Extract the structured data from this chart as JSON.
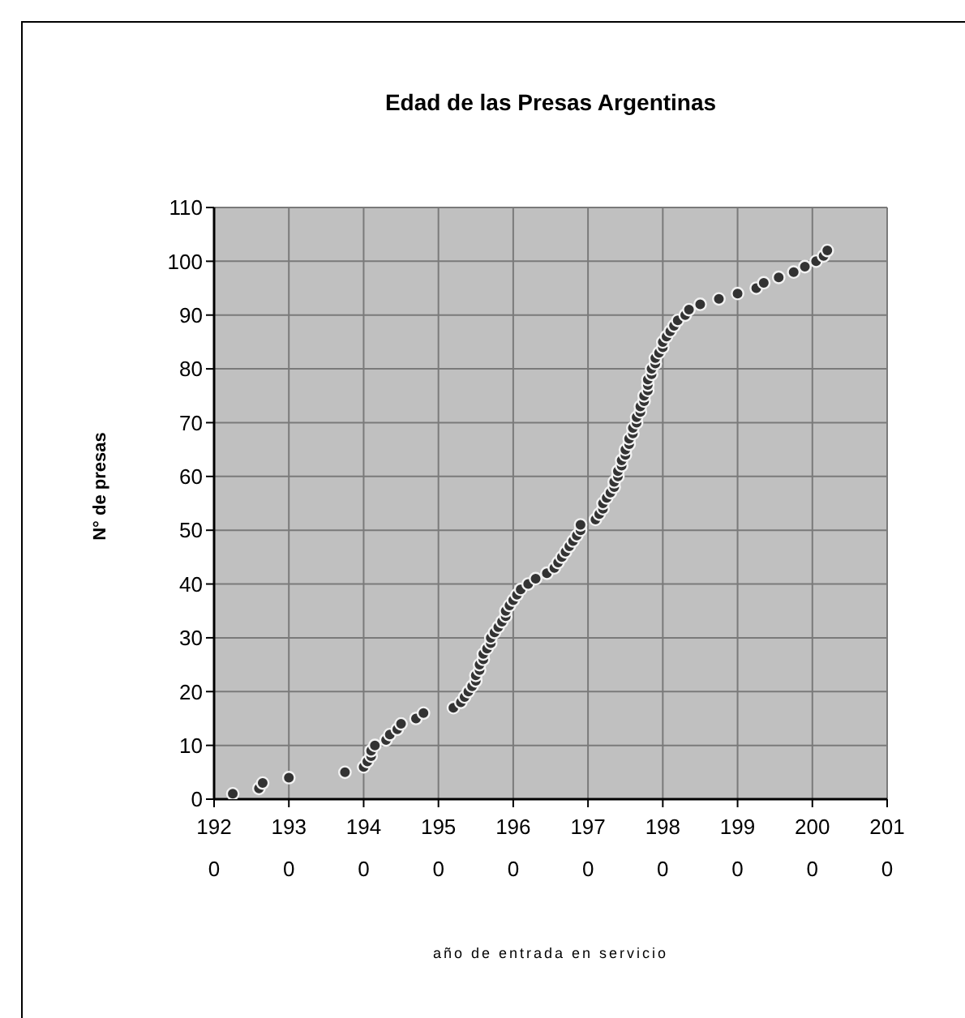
{
  "chart_data": {
    "type": "scatter",
    "title": "Edad de las Presas Argentinas",
    "xlabel": "año de entrada en servicio",
    "ylabel": "N° de presas",
    "x": [
      1922.5,
      1926,
      1926.5,
      1930,
      1937.5,
      1940,
      1940.5,
      1941,
      1941,
      1941.5,
      1943,
      1943.5,
      1944.5,
      1945,
      1947,
      1948,
      1952,
      1953,
      1953.5,
      1954,
      1954.5,
      1955,
      1955,
      1955.5,
      1955.5,
      1956,
      1956,
      1956.5,
      1957,
      1957,
      1957.5,
      1958,
      1958.5,
      1959,
      1959,
      1959.5,
      1960,
      1960.5,
      1961,
      1962,
      1963,
      1964.5,
      1965.5,
      1966,
      1966.5,
      1967,
      1967.5,
      1968,
      1968.5,
      1969,
      1969,
      1971,
      1971.5,
      1972,
      1972,
      1972.5,
      1973,
      1973.5,
      1973.5,
      1974,
      1974,
      1974.5,
      1974.5,
      1975,
      1975,
      1975.5,
      1975.5,
      1976,
      1976,
      1976.5,
      1976.5,
      1977,
      1977,
      1977.5,
      1977.5,
      1978,
      1978,
      1978,
      1978.5,
      1978.5,
      1979,
      1979,
      1979.5,
      1980,
      1980,
      1980.5,
      1981,
      1981.5,
      1982,
      1983,
      1983.5,
      1985,
      1987.5,
      1990,
      1992.5,
      1993.5,
      1995.5,
      1997.5,
      1999,
      2000.5,
      2001.5,
      2002
    ],
    "values": [
      1,
      2,
      3,
      4,
      5,
      6,
      7,
      8,
      9,
      10,
      11,
      12,
      13,
      14,
      15,
      16,
      17,
      18,
      19,
      20,
      21,
      22,
      23,
      24,
      25,
      26,
      27,
      28,
      29,
      30,
      31,
      32,
      33,
      34,
      35,
      36,
      37,
      38,
      39,
      40,
      41,
      42,
      43,
      44,
      45,
      46,
      47,
      48,
      49,
      50,
      51,
      52,
      53,
      54,
      55,
      56,
      57,
      58,
      59,
      60,
      61,
      62,
      63,
      64,
      65,
      66,
      67,
      68,
      69,
      70,
      71,
      72,
      73,
      74,
      75,
      76,
      77,
      78,
      79,
      80,
      81,
      82,
      83,
      84,
      85,
      86,
      87,
      88,
      89,
      90,
      91,
      92,
      93,
      94,
      95,
      96,
      97,
      98,
      99,
      100,
      101,
      102
    ],
    "color": "#333333",
    "marker": "circle",
    "xlim": [
      1920,
      2010
    ],
    "xticks": [
      1920,
      1930,
      1940,
      1950,
      1960,
      1970,
      1980,
      1990,
      2000,
      2010
    ],
    "ylim": [
      0,
      110
    ],
    "yticks": [
      0,
      10,
      20,
      30,
      40,
      50,
      60,
      70,
      80,
      90,
      100,
      110
    ],
    "grid": true
  }
}
